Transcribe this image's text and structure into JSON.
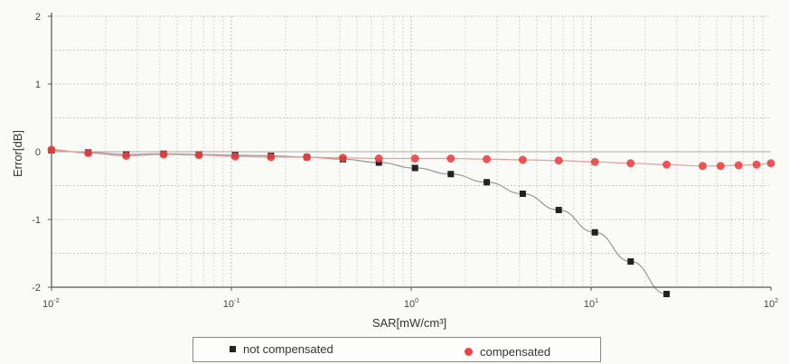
{
  "chart_data": {
    "type": "scatter",
    "xlabel": "SAR[mW/cm³]",
    "ylabel": "Error[dB]",
    "xscale": "log",
    "xlim": [
      0.01,
      100
    ],
    "ylim": [
      -2,
      2
    ],
    "x_ticks": [
      {
        "base": "10",
        "exp": "-2"
      },
      {
        "base": "10",
        "exp": "-1"
      },
      {
        "base": "10",
        "exp": "0"
      },
      {
        "base": "10",
        "exp": "1"
      },
      {
        "base": "10",
        "exp": "2"
      }
    ],
    "y_ticks": [
      2,
      1,
      0,
      -1,
      -2
    ],
    "grid": true,
    "legend_position": "bottom",
    "series": [
      {
        "name": "not compensated",
        "color": "#222222",
        "marker": "square",
        "x": [
          0.01,
          0.016,
          0.026,
          0.042,
          0.066,
          0.105,
          0.166,
          0.263,
          0.417,
          0.661,
          1.05,
          1.66,
          2.63,
          4.17,
          6.61,
          10.5,
          16.6,
          26.3
        ],
        "y": [
          0.02,
          -0.01,
          -0.04,
          -0.03,
          -0.04,
          -0.05,
          -0.06,
          -0.08,
          -0.11,
          -0.16,
          -0.24,
          -0.33,
          -0.45,
          -0.62,
          -0.86,
          -1.19,
          -1.62,
          -2.1
        ]
      },
      {
        "name": "compensated",
        "color": "#e84545",
        "marker": "circle",
        "x": [
          0.01,
          0.016,
          0.026,
          0.042,
          0.066,
          0.105,
          0.166,
          0.263,
          0.417,
          0.661,
          1.05,
          1.66,
          2.63,
          4.17,
          6.61,
          10.5,
          16.6,
          26.3,
          41.7,
          52.5,
          66.1,
          83.2,
          100
        ],
        "y": [
          0.03,
          -0.02,
          -0.06,
          -0.04,
          -0.05,
          -0.07,
          -0.08,
          -0.08,
          -0.09,
          -0.1,
          -0.1,
          -0.1,
          -0.11,
          -0.12,
          -0.13,
          -0.15,
          -0.17,
          -0.19,
          -0.21,
          -0.21,
          -0.2,
          -0.19,
          -0.17
        ]
      }
    ]
  }
}
